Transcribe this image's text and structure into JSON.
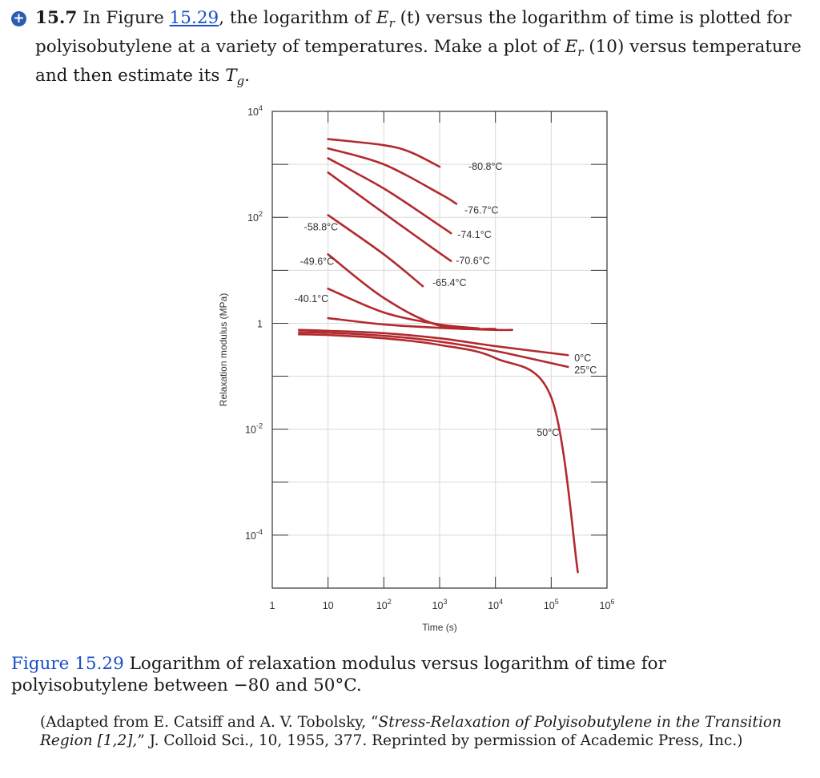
{
  "problem": {
    "number": "15.7",
    "text_1": " In Figure ",
    "figure_link": "15.29",
    "text_2": ", the logarithm of ",
    "symbol_E": "E",
    "symbol_r": "r",
    "text_3": " (t) versus the logarithm of time is plotted for polyisobutylene at a variety of temperatures. Make a plot of ",
    "text_4": " (10) versus temperature and then estimate its ",
    "symbol_T": "T",
    "symbol_g": "g",
    "text_5": "."
  },
  "caption": {
    "label": "Figure 15.29",
    "text": " Logarithm of relaxation modulus versus logarithm of time for polyisobutylene between −80 and 50°C."
  },
  "source": {
    "pre": "(Adapted from E. Catsiff and A. V. Tobolsky, “",
    "title": "Stress-Relaxation of Polyisobutylene in the Transition Region [1,2],",
    "post": "” J. Colloid Sci., 10, 1955, 377. Reprinted by permission of Academic Press, Inc.)"
  },
  "colors": {
    "curve": "#b22a2e",
    "link": "#1a4fc9",
    "badge": "#2a5db0"
  },
  "icons": {
    "badge": "plus-circle-icon"
  },
  "chart_data": {
    "type": "line",
    "xlabel": "Time (s)",
    "ylabel": "Relaxation modulus (MPa)",
    "x_scale": "log",
    "y_scale": "log",
    "xlim": [
      1,
      1000000
    ],
    "ylim": [
      1e-05,
      10000
    ],
    "x_ticks": [
      {
        "v": 1,
        "label": "1"
      },
      {
        "v": 10,
        "label": "10"
      },
      {
        "v": 100,
        "label": "10",
        "exp": "2"
      },
      {
        "v": 1000,
        "label": "10",
        "exp": "3"
      },
      {
        "v": 10000,
        "label": "10",
        "exp": "4"
      },
      {
        "v": 100000,
        "label": "10",
        "exp": "5"
      },
      {
        "v": 1000000,
        "label": "10",
        "exp": "6"
      }
    ],
    "y_ticks": [
      {
        "v": 10000,
        "label": "10",
        "exp": "4"
      },
      {
        "v": 100,
        "label": "10",
        "exp": "2"
      },
      {
        "v": 1,
        "label": "1"
      },
      {
        "v": 0.01,
        "label": "10",
        "exp": "-2"
      },
      {
        "v": 0.0001,
        "label": "10",
        "exp": "-4"
      }
    ],
    "grid": true,
    "series": [
      {
        "name": "-80.8°C",
        "x": [
          10,
          100,
          300,
          1000
        ],
        "y": [
          3000,
          2300,
          1700,
          900
        ]
      },
      {
        "name": "-76.7°C",
        "x": [
          10,
          100,
          1000,
          2000
        ],
        "y": [
          2000,
          1000,
          280,
          180
        ]
      },
      {
        "name": "-74.1°C",
        "x": [
          10,
          100,
          1000,
          1600
        ],
        "y": [
          1300,
          350,
          70,
          50
        ]
      },
      {
        "name": "-70.6°C",
        "x": [
          10,
          100,
          800,
          1600
        ],
        "y": [
          700,
          120,
          25,
          15
        ]
      },
      {
        "name": "-65.4°C",
        "x": [
          10,
          100,
          500
        ],
        "y": [
          110,
          20,
          5
        ]
      },
      {
        "name": "-58.8°C",
        "x": [
          10,
          100,
          1000,
          10000
        ],
        "y": [
          20,
          3,
          0.9,
          0.78
        ]
      },
      {
        "name": "-49.6°C",
        "x": [
          10,
          100,
          1000,
          5000
        ],
        "y": [
          4.5,
          1.6,
          0.95,
          0.8
        ]
      },
      {
        "name": "-40.1°C",
        "x": [
          10,
          100,
          1000,
          10000,
          20000
        ],
        "y": [
          1.25,
          0.95,
          0.82,
          0.75,
          0.75
        ]
      },
      {
        "name": "0°C",
        "x": [
          3,
          10,
          100,
          1000,
          10000,
          200000
        ],
        "y": [
          0.75,
          0.72,
          0.65,
          0.52,
          0.37,
          0.25
        ]
      },
      {
        "name": "25°C",
        "x": [
          3,
          10,
          100,
          1000,
          10000,
          200000
        ],
        "y": [
          0.68,
          0.66,
          0.58,
          0.45,
          0.3,
          0.15
        ]
      },
      {
        "name": "50°C",
        "x": [
          3,
          10,
          100,
          1000,
          10000,
          100000,
          300000
        ],
        "y": [
          0.62,
          0.6,
          0.52,
          0.39,
          0.22,
          0.04,
          2e-05
        ]
      }
    ]
  }
}
